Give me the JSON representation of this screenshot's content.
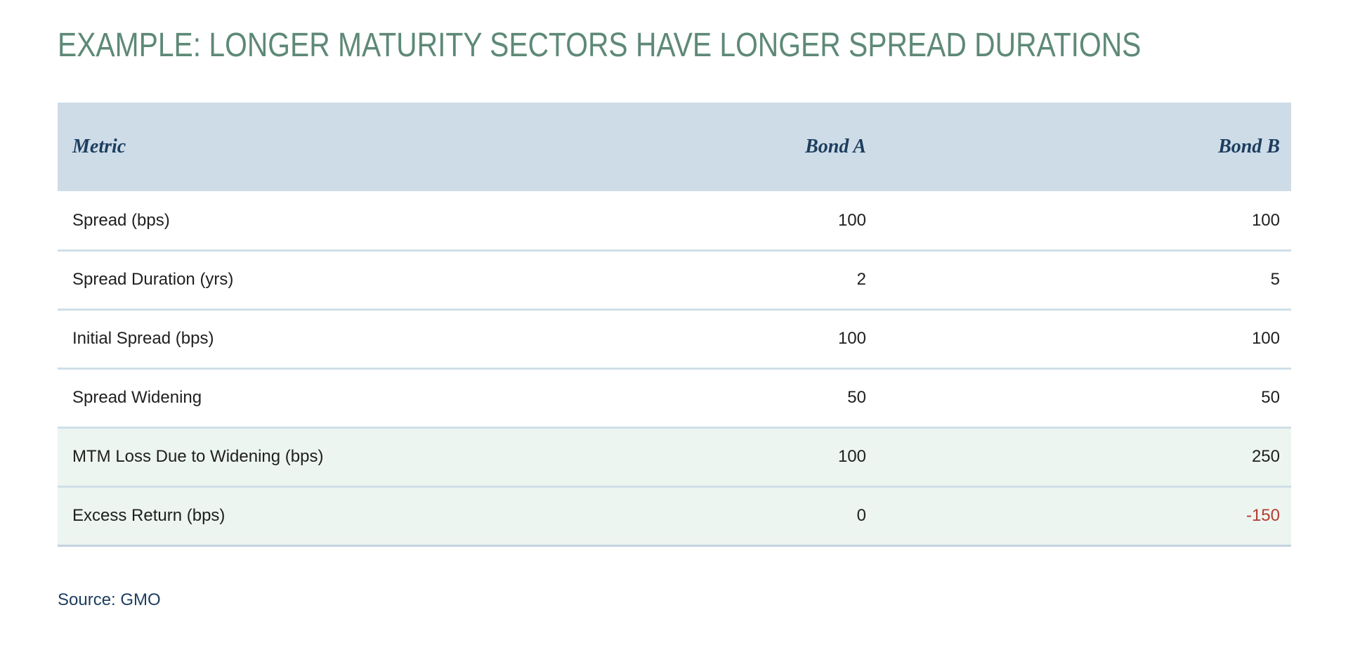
{
  "page": {
    "title": "EXAMPLE: LONGER MATURITY SECTORS HAVE LONGER SPREAD DURATIONS",
    "source_label": "Source: GMO"
  },
  "colors": {
    "title_text": "#5e8977",
    "header_bg": "#cddce7",
    "header_text": "#1d3d5e",
    "row_divider": "#cfdfe8",
    "highlight_bg": "#edf5f0",
    "negative_text": "#b43c31",
    "body_text": "#1f1f1f"
  },
  "table": {
    "columns": [
      "Metric",
      "Bond A",
      "Bond B"
    ],
    "rows": [
      {
        "metric": "Spread (bps)",
        "bond_a": "100",
        "bond_b": "100",
        "highlight": false,
        "bond_b_negative": false
      },
      {
        "metric": "Spread Duration (yrs)",
        "bond_a": "2",
        "bond_b": "5",
        "highlight": false,
        "bond_b_negative": false
      },
      {
        "metric": "Initial Spread (bps)",
        "bond_a": "100",
        "bond_b": "100",
        "highlight": false,
        "bond_b_negative": false
      },
      {
        "metric": "Spread Widening",
        "bond_a": "50",
        "bond_b": "50",
        "highlight": false,
        "bond_b_negative": false
      },
      {
        "metric": "MTM Loss Due to Widening (bps)",
        "bond_a": "100",
        "bond_b": "250",
        "highlight": true,
        "bond_b_negative": false
      },
      {
        "metric": "Excess Return (bps)",
        "bond_a": "0",
        "bond_b": "-150",
        "highlight": true,
        "bond_b_negative": true
      }
    ]
  },
  "chart_data": {
    "type": "table",
    "title": "EXAMPLE: LONGER MATURITY SECTORS HAVE LONGER SPREAD DURATIONS",
    "columns": [
      "Metric",
      "Bond A",
      "Bond B"
    ],
    "rows": [
      [
        "Spread (bps)",
        100,
        100
      ],
      [
        "Spread Duration (yrs)",
        2,
        5
      ],
      [
        "Initial Spread (bps)",
        100,
        100
      ],
      [
        "Spread Widening",
        50,
        50
      ],
      [
        "MTM Loss Due to Widening (bps)",
        100,
        250
      ],
      [
        "Excess Return (bps)",
        0,
        -150
      ]
    ]
  }
}
